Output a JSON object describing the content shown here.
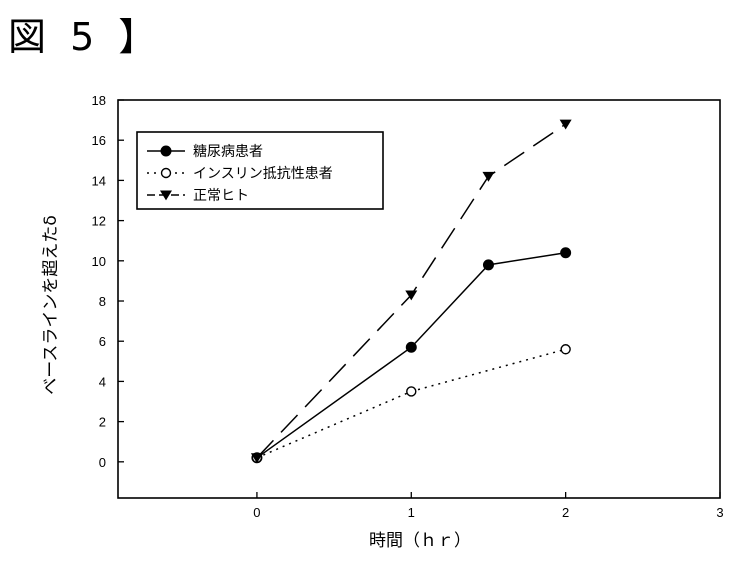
{
  "figure_title": "図 5 】",
  "chart_data": {
    "type": "line",
    "xlabel": "時間（ｈｒ）",
    "ylabel": "ベースラインを超えたδ",
    "xlim": [
      -0.9,
      3
    ],
    "ylim": [
      -1.8,
      18
    ],
    "xticks": [
      "0",
      "1",
      "2",
      "3"
    ],
    "yticks": [
      "0",
      "2",
      "4",
      "6",
      "8",
      "10",
      "12",
      "14",
      "16",
      "18"
    ],
    "grid": false,
    "legend_position": "top-left",
    "series": [
      {
        "name": "糖尿病患者",
        "style": "solid",
        "marker": "filled-circle",
        "x": [
          0,
          1,
          1.5,
          2
        ],
        "y": [
          0.2,
          5.7,
          9.8,
          10.4
        ]
      },
      {
        "name": "インスリン抵抗性患者",
        "style": "dotted",
        "marker": "open-circle",
        "x": [
          0,
          1,
          2
        ],
        "y": [
          0.2,
          3.5,
          5.6
        ]
      },
      {
        "name": "正常ヒト",
        "style": "dashed",
        "marker": "filled-triangle-down",
        "x": [
          0,
          1,
          1.5,
          2
        ],
        "y": [
          0.2,
          8.3,
          14.2,
          16.8
        ]
      }
    ]
  }
}
